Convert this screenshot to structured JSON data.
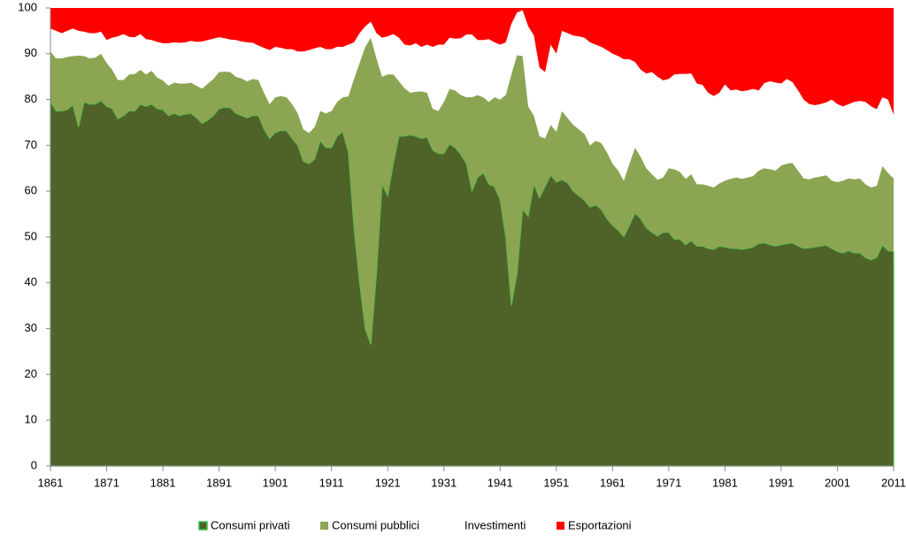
{
  "chart_data": {
    "type": "stacked-area",
    "x": [
      1861,
      1862,
      1863,
      1864,
      1865,
      1866,
      1867,
      1868,
      1869,
      1870,
      1871,
      1872,
      1873,
      1874,
      1875,
      1876,
      1877,
      1878,
      1879,
      1880,
      1881,
      1882,
      1883,
      1884,
      1885,
      1886,
      1887,
      1888,
      1889,
      1890,
      1891,
      1892,
      1893,
      1894,
      1895,
      1896,
      1897,
      1898,
      1899,
      1900,
      1901,
      1902,
      1903,
      1904,
      1905,
      1906,
      1907,
      1908,
      1909,
      1910,
      1911,
      1912,
      1913,
      1914,
      1915,
      1916,
      1917,
      1918,
      1919,
      1920,
      1921,
      1922,
      1923,
      1924,
      1925,
      1926,
      1927,
      1928,
      1929,
      1930,
      1931,
      1932,
      1933,
      1934,
      1935,
      1936,
      1937,
      1938,
      1939,
      1940,
      1941,
      1942,
      1943,
      1944,
      1945,
      1946,
      1947,
      1948,
      1949,
      1950,
      1951,
      1952,
      1953,
      1954,
      1955,
      1956,
      1957,
      1958,
      1959,
      1960,
      1961,
      1962,
      1963,
      1964,
      1965,
      1966,
      1967,
      1968,
      1969,
      1970,
      1971,
      1972,
      1973,
      1974,
      1975,
      1976,
      1977,
      1978,
      1979,
      1980,
      1981,
      1982,
      1983,
      1984,
      1985,
      1986,
      1987,
      1988,
      1989,
      1990,
      1991,
      1992,
      1993,
      1994,
      1995,
      1996,
      1997,
      1998,
      1999,
      2000,
      2001,
      2002,
      2003,
      2004,
      2005,
      2006,
      2007,
      2008,
      2009,
      2010,
      2011
    ],
    "series": [
      {
        "name": "Consumi privati",
        "color": "#4f6228",
        "values": [
          79.5,
          77.5,
          77.5,
          77.8,
          78.8,
          74,
          79.5,
          79,
          79,
          79.8,
          78.5,
          78,
          75.8,
          76.5,
          77.5,
          77.5,
          79,
          78.5,
          79,
          78,
          77.8,
          76.5,
          77,
          76.5,
          76.8,
          77,
          76,
          74.8,
          75.5,
          76.5,
          78,
          78.3,
          78.2,
          77,
          76.5,
          76,
          76.5,
          76.5,
          73.5,
          71.5,
          72.8,
          73.2,
          73.2,
          71.5,
          70,
          66.5,
          66,
          67,
          71,
          69.5,
          69.5,
          72,
          73,
          68.5,
          52,
          40,
          30,
          26.5,
          42,
          61.5,
          59,
          66,
          72,
          72,
          72.3,
          72,
          71.5,
          71.8,
          69,
          68.2,
          68.2,
          70.3,
          69.5,
          68,
          66,
          60,
          63,
          64,
          61.5,
          61,
          58,
          50,
          35,
          42,
          56,
          54.5,
          61.5,
          58.5,
          61,
          63.5,
          62,
          62.5,
          61.8,
          60,
          59,
          58,
          56.5,
          57,
          56,
          54,
          52.5,
          51.5,
          50,
          52.5,
          55.2,
          54,
          52,
          51,
          50.2,
          51,
          51,
          49.5,
          49.5,
          48.3,
          49.2,
          48,
          48,
          47.5,
          47.3,
          48,
          47.8,
          47.5,
          47.5,
          47.3,
          47.5,
          47.8,
          48.6,
          48.7,
          48.3,
          48,
          48.3,
          48.5,
          48.7,
          48,
          47.5,
          47.6,
          47.8,
          48,
          48.2,
          47.5,
          46.8,
          46.5,
          47,
          46.5,
          46.5,
          45.5,
          45,
          45.5,
          48.2,
          47,
          46.8
        ]
      },
      {
        "name": "Consumi pubblici",
        "color": "#8ba552",
        "values": [
          11,
          11.5,
          11.5,
          11.5,
          10.7,
          15.6,
          10,
          10,
          10.2,
          10.2,
          9.5,
          8.5,
          8.5,
          7.8,
          8,
          8.1,
          7.5,
          7,
          7.3,
          6.8,
          6.4,
          6.5,
          6.7,
          7,
          6.7,
          6.7,
          7,
          7.6,
          8,
          8,
          8,
          7.8,
          7.8,
          8,
          8.1,
          8,
          8,
          7.8,
          8,
          7.5,
          7.7,
          7.6,
          7.3,
          7.5,
          7,
          7,
          6.7,
          7,
          6.5,
          7.5,
          8,
          7.5,
          7.5,
          12.2,
          32.5,
          48,
          61.5,
          67,
          47,
          23.5,
          26.5,
          19.5,
          12,
          10.5,
          9.2,
          9.7,
          10.3,
          9.7,
          9,
          9.3,
          11.3,
          12,
          12.5,
          13,
          14.5,
          20.5,
          18,
          16.5,
          18,
          19.5,
          22,
          31,
          50.5,
          47.7,
          33.5,
          24,
          15,
          13.5,
          10.5,
          11,
          11,
          15,
          14.2,
          14.5,
          14.5,
          14.5,
          13.5,
          14,
          14.5,
          14.5,
          13.5,
          13,
          12.3,
          13.5,
          14.3,
          13.5,
          13,
          12.7,
          12.3,
          12,
          14,
          15.3,
          14.7,
          14.4,
          14.5,
          13.5,
          13.5,
          13.7,
          13.5,
          13.7,
          14.5,
          15.2,
          15.5,
          15.4,
          15.5,
          15.5,
          15.9,
          16.3,
          16.5,
          16.5,
          17.3,
          17.5,
          17.5,
          16.5,
          15.3,
          15,
          15.2,
          15.2,
          15.3,
          14.8,
          15.2,
          15.8,
          15.8,
          16.1,
          16.3,
          16,
          15.8,
          15.7,
          17.3,
          17,
          16
        ]
      },
      {
        "name": "Investimenti",
        "color": "#ffffff",
        "values": [
          5,
          6,
          5.5,
          5.7,
          6,
          5.4,
          5.3,
          5.5,
          5.3,
          4.8,
          5,
          7,
          9.5,
          10,
          8.2,
          8,
          7.8,
          7.7,
          6.7,
          7.8,
          8.1,
          9.3,
          8.8,
          8.9,
          9,
          9.1,
          9.6,
          10.3,
          9.5,
          8.8,
          7.6,
          7.3,
          7.1,
          8,
          8.1,
          8.5,
          7.9,
          7.5,
          9.8,
          11.8,
          11,
          10.5,
          10.5,
          12,
          13.5,
          17,
          18.1,
          17.2,
          14,
          14,
          13.5,
          12,
          11,
          11.3,
          8,
          6.5,
          4.5,
          3.5,
          5.5,
          8.5,
          8.3,
          8.8,
          9.5,
          9.5,
          10.3,
          10.6,
          9.7,
          10.5,
          13.5,
          14.5,
          12.5,
          11.2,
          11.3,
          12.4,
          13.7,
          13.7,
          12,
          12.5,
          13.7,
          12,
          12,
          11.5,
          11,
          9.3,
          10,
          17.5,
          17.5,
          15,
          14.5,
          17.5,
          17,
          17.5,
          18.5,
          19.5,
          20.3,
          21,
          22.5,
          21,
          21,
          22.3,
          24,
          25,
          26.5,
          22.8,
          18.7,
          19,
          20.7,
          22.3,
          22.5,
          21.2,
          19.5,
          20.7,
          21.4,
          22.9,
          22,
          22,
          21.7,
          20.3,
          20,
          19.8,
          21,
          19.3,
          19.2,
          19.1,
          19,
          19,
          17.5,
          18.6,
          19.2,
          19.2,
          17.9,
          18.5,
          17.6,
          17.5,
          17.2,
          16.4,
          15.8,
          15.8,
          15.9,
          17.7,
          17,
          16.2,
          16.2,
          16.9,
          16.9,
          18,
          17.7,
          16.7,
          15,
          16,
          13.9
        ]
      },
      {
        "name": "Esportazioni",
        "color": "#ff0000",
        "values": [
          4.5,
          5,
          5.5,
          5,
          4.5,
          5,
          5.2,
          5.5,
          5.5,
          5.2,
          7,
          6.5,
          6.2,
          5.7,
          6.3,
          6.4,
          5.7,
          6.8,
          7,
          7.4,
          7.7,
          7.7,
          7.5,
          7.6,
          7.5,
          7.2,
          7.4,
          7.3,
          7,
          6.7,
          6.4,
          6.6,
          6.9,
          7,
          7.3,
          7.5,
          7.6,
          8.2,
          8.7,
          9.2,
          8.5,
          8.7,
          9,
          9,
          9.5,
          9.5,
          9.2,
          8.8,
          8.5,
          9,
          9,
          8.5,
          8.5,
          8,
          7.5,
          5.5,
          4,
          3,
          5.5,
          6.5,
          6.2,
          5.7,
          6.5,
          8,
          8.2,
          7.7,
          8.5,
          8,
          8.5,
          8,
          8,
          6.5,
          6.7,
          6.6,
          5.8,
          5.8,
          7,
          7,
          6.8,
          7.5,
          8,
          7.5,
          3.5,
          1,
          0.5,
          4,
          6,
          13,
          14,
          8,
          10,
          5,
          5.5,
          6,
          6.2,
          6.5,
          7.5,
          8,
          8.5,
          9.2,
          10,
          10.5,
          11.2,
          11.2,
          11.8,
          13.5,
          14.3,
          14,
          15,
          15.8,
          15.5,
          14.5,
          14.4,
          14.4,
          14.3,
          16.5,
          16.8,
          18.5,
          19.2,
          18.5,
          16.7,
          18,
          17.8,
          18.2,
          18,
          17.7,
          18,
          16.4,
          16,
          16.3,
          16.5,
          15.5,
          16.2,
          18,
          20,
          21,
          21.2,
          21,
          20.6,
          20,
          21,
          21.5,
          21,
          20.5,
          20.3,
          20.5,
          21.5,
          22.1,
          19.5,
          20,
          23.3
        ]
      }
    ],
    "xlim": [
      1861,
      2011
    ],
    "xticks": [
      1861,
      1871,
      1881,
      1891,
      1901,
      1911,
      1921,
      1931,
      1941,
      1951,
      1961,
      1971,
      1981,
      1991,
      2001,
      2011
    ],
    "ylim": [
      0,
      100
    ],
    "yticks": [
      0,
      10,
      20,
      30,
      40,
      50,
      60,
      70,
      80,
      90,
      100
    ],
    "legend": "bottom"
  }
}
